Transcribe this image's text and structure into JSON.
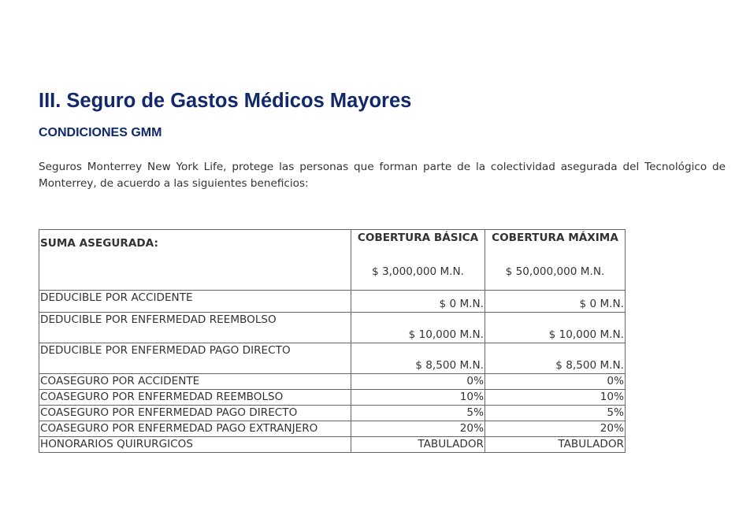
{
  "heading": "III. Seguro de Gastos Médicos Mayores",
  "subheading": "CONDICIONES GMM",
  "intro": "Seguros Monterrey New York Life, protege las personas que forman parte de la colectividad asegurada del Tecnológico de Monterrey, de acuerdo a las siguientes beneficios:",
  "table": {
    "header": {
      "label": "SUMA ASEGURADA:",
      "col1": "COBERTURA BÁSICA",
      "col2": "COBERTURA MÁXIMA",
      "col1_sum": "$ 3,000,000 M.N.",
      "col2_sum": "$ 50,000,000 M.N."
    },
    "rows": [
      {
        "label": "DEDUCIBLE POR ACCIDENTE",
        "basica": "$ 0 M.N.",
        "maxima": "$ 0 M.N."
      },
      {
        "label": "DEDUCIBLE POR ENFERMEDAD REEMBOLSO",
        "basica": "$ 10,000 M.N.",
        "maxima": "$ 10,000 M.N."
      },
      {
        "label": "DEDUCIBLE POR ENFERMEDAD PAGO DIRECTO",
        "basica": "$ 8,500 M.N.",
        "maxima": "$ 8,500 M.N."
      },
      {
        "label": "COASEGURO POR ACCIDENTE",
        "basica": "0%",
        "maxima": "0%"
      },
      {
        "label": "COASEGURO POR ENFERMEDAD REEMBOLSO",
        "basica": "10%",
        "maxima": "10%"
      },
      {
        "label": "COASEGURO POR ENFERMEDAD PAGO DIRECTO",
        "basica": "5%",
        "maxima": "5%"
      },
      {
        "label": "COASEGURO POR ENFERMEDAD PAGO EXTRANJERO",
        "basica": "20%",
        "maxima": "20%"
      },
      {
        "label": "HONORARIOS QUIRURGICOS",
        "basica": "TABULADOR",
        "maxima": "TABULADOR"
      }
    ]
  },
  "colors": {
    "heading": "#11286b",
    "text": "#333333",
    "border": "#666666"
  }
}
